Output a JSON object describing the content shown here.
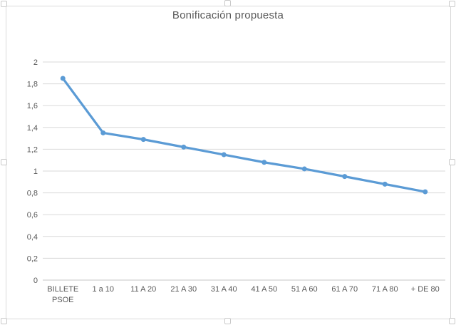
{
  "chart_data": {
    "type": "line",
    "title": "Bonificación propuesta",
    "categories": [
      "BILLETE\nPSOE",
      "1 a 10",
      "11 A 20",
      "21 A 30",
      "31 A 40",
      "41 A 50",
      "51 A 60",
      "61 A 70",
      "71 A 80",
      "+ DE 80"
    ],
    "series": [
      {
        "name": "Bonificación propuesta",
        "values": [
          1.85,
          1.35,
          1.29,
          1.22,
          1.15,
          1.08,
          1.02,
          0.95,
          0.88,
          0.81
        ]
      }
    ],
    "xlabel": "",
    "ylabel": "",
    "ylim": [
      0,
      2
    ],
    "y_tick_step": 0.2,
    "y_tick_labels": [
      "0",
      "0,2",
      "0,4",
      "0,6",
      "0,8",
      "1",
      "1,2",
      "1,4",
      "1,6",
      "1,8",
      "2"
    ],
    "grid": true,
    "legend": "none",
    "colors": {
      "series": "#5B9BD5",
      "gridline": "#D9D9D9",
      "axis_line": "#C6C6C6",
      "tick_label": "#595959",
      "title": "#595959",
      "chart_border": "#D9D9D9",
      "handle_border": "#C9C9C9",
      "background": "#FFFFFF"
    }
  },
  "selection": {
    "handles": [
      "top-left",
      "top-center",
      "top-right",
      "middle-left",
      "middle-right",
      "bottom-left",
      "bottom-center",
      "bottom-right"
    ]
  }
}
